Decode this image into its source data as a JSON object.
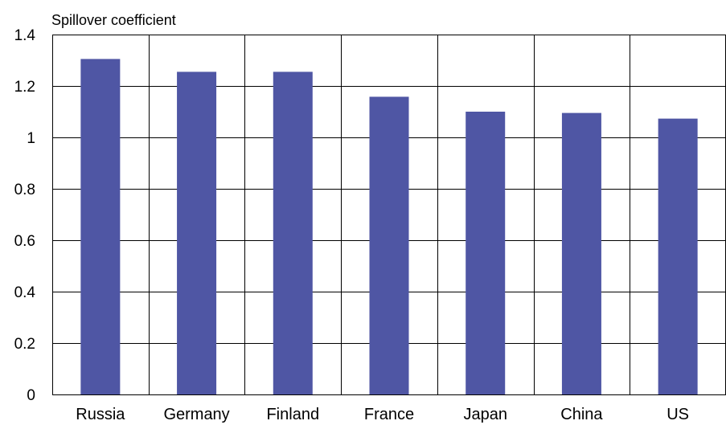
{
  "chart_data": {
    "type": "bar",
    "ylabel": "Spillover coefficient",
    "categories": [
      "Russia",
      "Germany",
      "Finland",
      "France",
      "Japan",
      "China",
      "US"
    ],
    "values": [
      1.305,
      1.255,
      1.255,
      1.158,
      1.1,
      1.095,
      1.073
    ],
    "ylim": [
      0,
      1.4
    ],
    "yticks": [
      0,
      0.2,
      0.4,
      0.6,
      0.8,
      1,
      1.2,
      1.4
    ],
    "ytick_labels": [
      "0",
      "0.2",
      "0.4",
      "0.6",
      "0.8",
      "1",
      "1.2",
      "1.4"
    ],
    "grid": true,
    "bar_color": "#4f56a4"
  }
}
